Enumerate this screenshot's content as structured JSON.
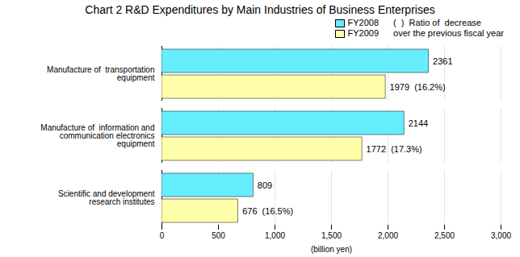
{
  "chart_data": {
    "type": "bar",
    "orientation": "horizontal",
    "title": "Chart 2 R&D Expenditures by Main Industries of Business Enterprises",
    "xlabel": "(billion yen)",
    "categories": [
      "Manufacture of  transportation\nequipment",
      "Manufacture of  information and\ncommunication electronics\nequipment",
      "Scientific and development\nresearch institutes"
    ],
    "series": [
      {
        "name": "FY2008",
        "color": "#66EEFF",
        "values": [
          2361,
          2144,
          809
        ]
      },
      {
        "name": "FY2009",
        "color": "#FFFFAA",
        "values": [
          1979,
          1772,
          676
        ],
        "value_labels": [
          "1979  (16.2%)",
          "1772  (17.3%)",
          "676  (16.5%)"
        ]
      }
    ],
    "xlim": [
      0,
      3000
    ],
    "xticks": [
      0,
      500,
      {
        "value": 1000,
        "label": "1,000"
      },
      {
        "value": 1500,
        "label": "1,500"
      },
      {
        "value": 2000,
        "label": "2,000"
      },
      {
        "value": 2500,
        "label": "2,500"
      },
      {
        "value": 3000,
        "label": "3,000"
      }
    ],
    "grid": true,
    "legend": "upper right",
    "data_labels": true,
    "annotations": [
      "(  )  Ratio of  decrease",
      "over the previous fiscal year"
    ]
  }
}
